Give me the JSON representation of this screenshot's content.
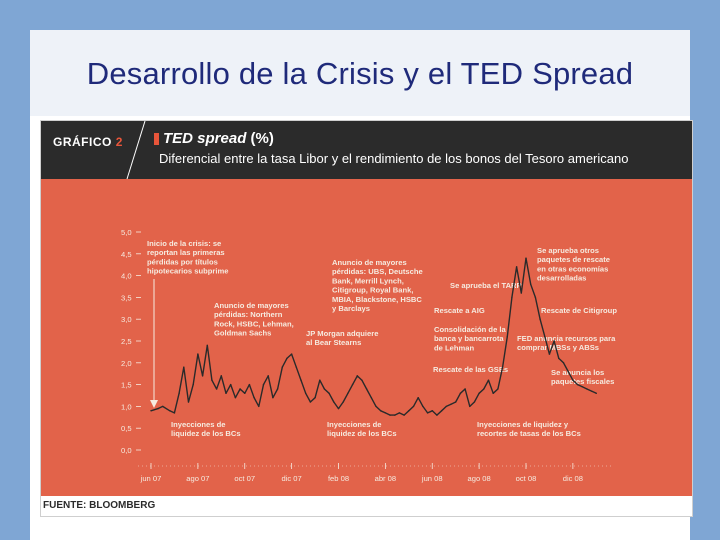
{
  "slide": {
    "title": "Desarrollo de la Crisis y el TED Spread"
  },
  "figure": {
    "label": "GRÁFICO",
    "number": "2",
    "title_main": "TED spread",
    "title_unit": "(%)",
    "subtitle": "Diferencial entre la tasa Libor y el rendimiento de los bonos del Tesoro americano",
    "source": "FUENTE: BLOOMBERG"
  },
  "colors": {
    "plot_bg": "#e2634a",
    "line": "#2a2a2a",
    "header_bg": "#2b2b2b",
    "text_light": "#f6ebe0"
  },
  "chart_data": {
    "type": "line",
    "title": "TED spread (%)",
    "xlabel": "",
    "ylabel": "",
    "ylim": [
      0,
      5
    ],
    "yticks": [
      "5,0",
      "4,5",
      "4,0",
      "3,5",
      "3,0",
      "2,5",
      "2,0",
      "1,5",
      "1,0",
      "0,5",
      "0,0"
    ],
    "yticks_values": [
      5.0,
      4.5,
      4.0,
      3.5,
      3.0,
      2.5,
      2.0,
      1.5,
      1.0,
      0.5,
      0.0
    ],
    "xticks": [
      "jun 07",
      "ago 07",
      "oct 07",
      "dic 07",
      "feb 08",
      "abr 08",
      "jun 08",
      "ago 08",
      "oct 08",
      "dic 08"
    ],
    "xticks_months": [
      0,
      2,
      4,
      6,
      8,
      10,
      12,
      14,
      16,
      18
    ],
    "xlim_months": [
      0,
      19.2
    ],
    "series": [
      {
        "name": "TED spread",
        "x_months": [
          0.0,
          0.3,
          0.5,
          0.8,
          1.0,
          1.2,
          1.4,
          1.6,
          1.8,
          2.0,
          2.2,
          2.4,
          2.6,
          2.8,
          3.0,
          3.2,
          3.4,
          3.6,
          3.8,
          4.0,
          4.2,
          4.4,
          4.6,
          4.8,
          5.0,
          5.2,
          5.4,
          5.6,
          5.8,
          6.0,
          6.2,
          6.4,
          6.6,
          6.8,
          7.0,
          7.2,
          7.4,
          7.6,
          7.8,
          8.0,
          8.2,
          8.4,
          8.6,
          8.8,
          9.0,
          9.2,
          9.4,
          9.6,
          9.8,
          10.0,
          10.2,
          10.4,
          10.6,
          10.8,
          11.0,
          11.2,
          11.4,
          11.6,
          11.8,
          12.0,
          12.2,
          12.4,
          12.6,
          12.8,
          13.0,
          13.2,
          13.4,
          13.6,
          13.8,
          14.0,
          14.2,
          14.4,
          14.6,
          14.8,
          15.0,
          15.2,
          15.4,
          15.6,
          15.8,
          16.0,
          16.2,
          16.4,
          16.6,
          16.8,
          17.0,
          17.2,
          17.4,
          17.6,
          17.8,
          18.0,
          18.2,
          18.4,
          18.6,
          18.8,
          19.0
        ],
        "values": [
          0.9,
          0.95,
          1.0,
          0.9,
          0.85,
          1.3,
          1.9,
          1.1,
          1.5,
          2.2,
          1.7,
          2.4,
          1.6,
          1.4,
          1.7,
          1.3,
          1.5,
          1.2,
          1.4,
          1.3,
          1.5,
          1.2,
          1.0,
          1.5,
          1.7,
          1.2,
          1.4,
          1.9,
          2.1,
          2.2,
          1.9,
          1.6,
          1.3,
          1.1,
          1.2,
          1.6,
          1.4,
          1.3,
          1.1,
          0.95,
          1.1,
          1.3,
          1.5,
          1.7,
          1.6,
          1.4,
          1.2,
          1.0,
          0.9,
          0.85,
          0.8,
          0.8,
          0.85,
          0.8,
          0.9,
          1.0,
          1.2,
          1.0,
          0.85,
          0.9,
          0.8,
          0.9,
          1.0,
          1.05,
          1.1,
          1.3,
          1.4,
          1.0,
          1.1,
          1.3,
          1.4,
          1.6,
          1.3,
          1.4,
          1.9,
          2.6,
          3.5,
          4.2,
          3.6,
          4.4,
          3.8,
          3.5,
          3.0,
          2.6,
          2.2,
          2.5,
          2.1,
          2.0,
          1.8,
          1.6,
          1.5,
          1.45,
          1.4,
          1.35,
          1.3
        ]
      }
    ],
    "annotations": [
      {
        "lines": [
          "Inicio de la crisis: se",
          "reportan las primeras",
          "pérdidas por títulos",
          "hipotecarios subprime"
        ]
      },
      {
        "lines": [
          "Anuncio de mayores",
          "pérdidas: Northern",
          "Rock, HSBC, Lehman,",
          "Goldman Sachs"
        ]
      },
      {
        "lines": [
          "Anuncio de mayores",
          "pérdidas: UBS, Deutsche",
          "Bank, Merrill Lynch,",
          "Citigroup, Royal Bank,",
          "MBIA, Blackstone, HSBC",
          "y Barclays"
        ]
      },
      {
        "lines": [
          "JP Morgan adquiere",
          "al Bear Stearns"
        ]
      },
      {
        "lines": [
          "Se aprueba el TARP"
        ]
      },
      {
        "lines": [
          "Rescate a AIG"
        ]
      },
      {
        "lines": [
          "Consolidación de la",
          "banca y bancarrota",
          "de Lehman"
        ]
      },
      {
        "lines": [
          "Rescate de las GSEs"
        ]
      },
      {
        "lines": [
          "Se aprueba otros",
          "paquetes de rescate",
          "en otras economías",
          "desarrolladas"
        ]
      },
      {
        "lines": [
          "Rescate de Citigroup"
        ]
      },
      {
        "lines": [
          "FED anuncia recursos para",
          "comprar MBSs y ABSs"
        ]
      },
      {
        "lines": [
          "Se anuncia los",
          "paquetes fiscales"
        ]
      },
      {
        "lines": [
          "Inyecciones de",
          "liquidez de los BCs"
        ]
      },
      {
        "lines": [
          "Inyecciones de",
          "liquidez de los BCs"
        ]
      },
      {
        "lines": [
          "Inyecciones de liquidez y",
          "recortes de tasas de los BCs"
        ]
      }
    ]
  }
}
